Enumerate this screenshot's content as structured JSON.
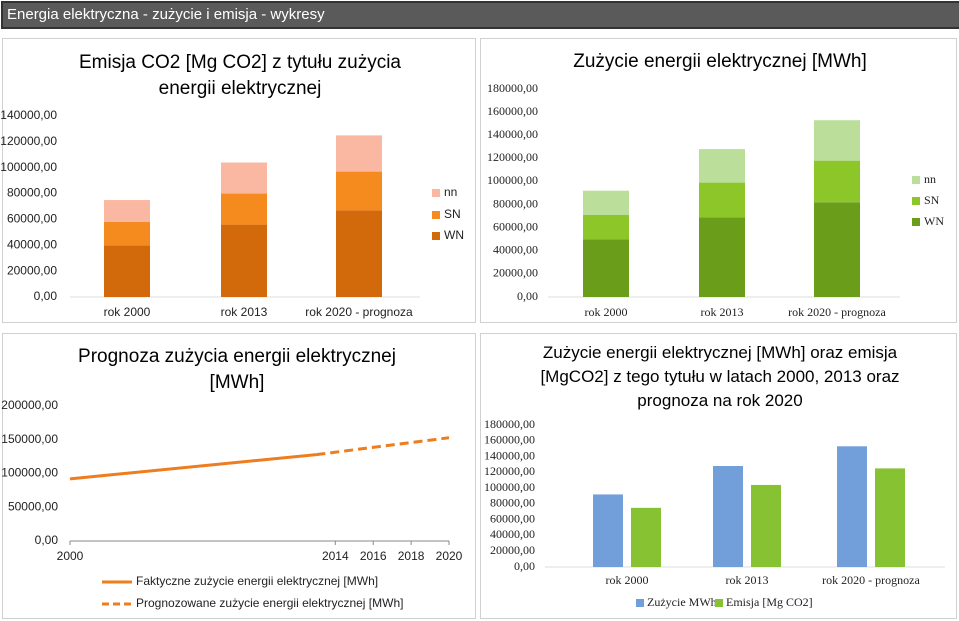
{
  "header": {
    "title": "Energia elektryczna - zużycie i emisja - wykresy"
  },
  "chart_data": [
    {
      "type": "stacked-bar",
      "title": "Emisja CO2 [Mg CO2] z tytułu zużycia energii elektrycznej",
      "categories": [
        "rok 2000",
        "rok 2013",
        "rok 2020 - prognoza"
      ],
      "series": [
        {
          "name": "WN",
          "color": "#d2690a",
          "values": [
            40000,
            56000,
            67000
          ]
        },
        {
          "name": "SN",
          "color": "#f58a1f",
          "values": [
            18000,
            24000,
            30000
          ]
        },
        {
          "name": "nn",
          "color": "#fab8a2",
          "values": [
            17000,
            24000,
            28000
          ]
        }
      ],
      "ylim": [
        0,
        140000
      ],
      "yticks": [
        {
          "value": 0,
          "label": "0,00"
        },
        {
          "value": 20000,
          "label": "20000,00"
        },
        {
          "value": 40000,
          "label": "40000,00"
        },
        {
          "value": 60000,
          "label": "60000,00"
        },
        {
          "value": 80000,
          "label": "80000,00"
        },
        {
          "value": 100000,
          "label": "100000,00"
        },
        {
          "value": 120000,
          "label": "120000,00"
        },
        {
          "value": 140000,
          "label": "140000,00"
        }
      ],
      "legend": "right"
    },
    {
      "type": "stacked-bar",
      "title": "Zużycie energii elektrycznej [MWh]",
      "categories": [
        "rok 2000",
        "rok 2013",
        "rok 2020 - prognoza"
      ],
      "series": [
        {
          "name": "WN",
          "color": "#6a9e1a",
          "values": [
            50000,
            69000,
            82000
          ]
        },
        {
          "name": "SN",
          "color": "#8cc628",
          "values": [
            21000,
            30000,
            36000
          ]
        },
        {
          "name": "nn",
          "color": "#bbdf9a",
          "values": [
            21000,
            29000,
            35000
          ]
        }
      ],
      "ylim": [
        0,
        180000
      ],
      "yticks": [
        {
          "value": 0,
          "label": "0,00"
        },
        {
          "value": 20000,
          "label": "20000,00"
        },
        {
          "value": 40000,
          "label": "40000,00"
        },
        {
          "value": 60000,
          "label": "60000,00"
        },
        {
          "value": 80000,
          "label": "80000,00"
        },
        {
          "value": 100000,
          "label": "100000,00"
        },
        {
          "value": 120000,
          "label": "120000,00"
        },
        {
          "value": 140000,
          "label": "140000,00"
        },
        {
          "value": 160000,
          "label": "160000,00"
        },
        {
          "value": 180000,
          "label": "180000,00"
        }
      ],
      "legend": "right"
    },
    {
      "type": "line",
      "title": "Prognoza zużycia energii elektrycznej [MWh]",
      "series": [
        {
          "name": "Faktyczne zużycie energii elektrycznej [MWh]",
          "color": "#ed7d1f",
          "dashed": false,
          "x": [
            2000,
            2013
          ],
          "values": [
            92000,
            128000
          ]
        },
        {
          "name": "Prognozowane zużycie energii elektrycznej [MWh]",
          "color": "#ed7d1f",
          "dashed": true,
          "x": [
            2013,
            2020
          ],
          "values": [
            128000,
            153000
          ]
        }
      ],
      "xlim": [
        2000,
        2020
      ],
      "xticks": [
        2000,
        2014,
        2016,
        2018,
        2020
      ],
      "ylim": [
        0,
        200000
      ],
      "yticks": [
        {
          "value": 0,
          "label": "0,00"
        },
        {
          "value": 50000,
          "label": "50000,00"
        },
        {
          "value": 100000,
          "label": "100000,00"
        },
        {
          "value": 150000,
          "label": "150000,00"
        },
        {
          "value": 200000,
          "label": "200000,00"
        }
      ],
      "legend": "bottom"
    },
    {
      "type": "bar",
      "title": "Zużycie energii elektrycznej [MWh] oraz emisja [MgCO2] z tego tytułu w latach 2000, 2013 oraz prognoza na rok 2020",
      "categories": [
        "rok 2000",
        "rok 2013",
        "rok 2020 - prognoza"
      ],
      "series": [
        {
          "name": "Zużycie MWh",
          "color": "#729fd9",
          "values": [
            92000,
            128000,
            153000
          ]
        },
        {
          "name": "Emisja [Mg CO2]",
          "color": "#86c232",
          "values": [
            75000,
            104000,
            125000
          ]
        }
      ],
      "ylim": [
        0,
        180000
      ],
      "yticks": [
        {
          "value": 0,
          "label": "0,00"
        },
        {
          "value": 20000,
          "label": "20000,00"
        },
        {
          "value": 40000,
          "label": "40000,00"
        },
        {
          "value": 60000,
          "label": "60000,00"
        },
        {
          "value": 80000,
          "label": "80000,00"
        },
        {
          "value": 100000,
          "label": "100000,00"
        },
        {
          "value": 120000,
          "label": "120000,00"
        },
        {
          "value": 140000,
          "label": "140000,00"
        },
        {
          "value": 160000,
          "label": "160000,00"
        },
        {
          "value": 180000,
          "label": "180000,00"
        }
      ],
      "legend": "bottom"
    }
  ]
}
